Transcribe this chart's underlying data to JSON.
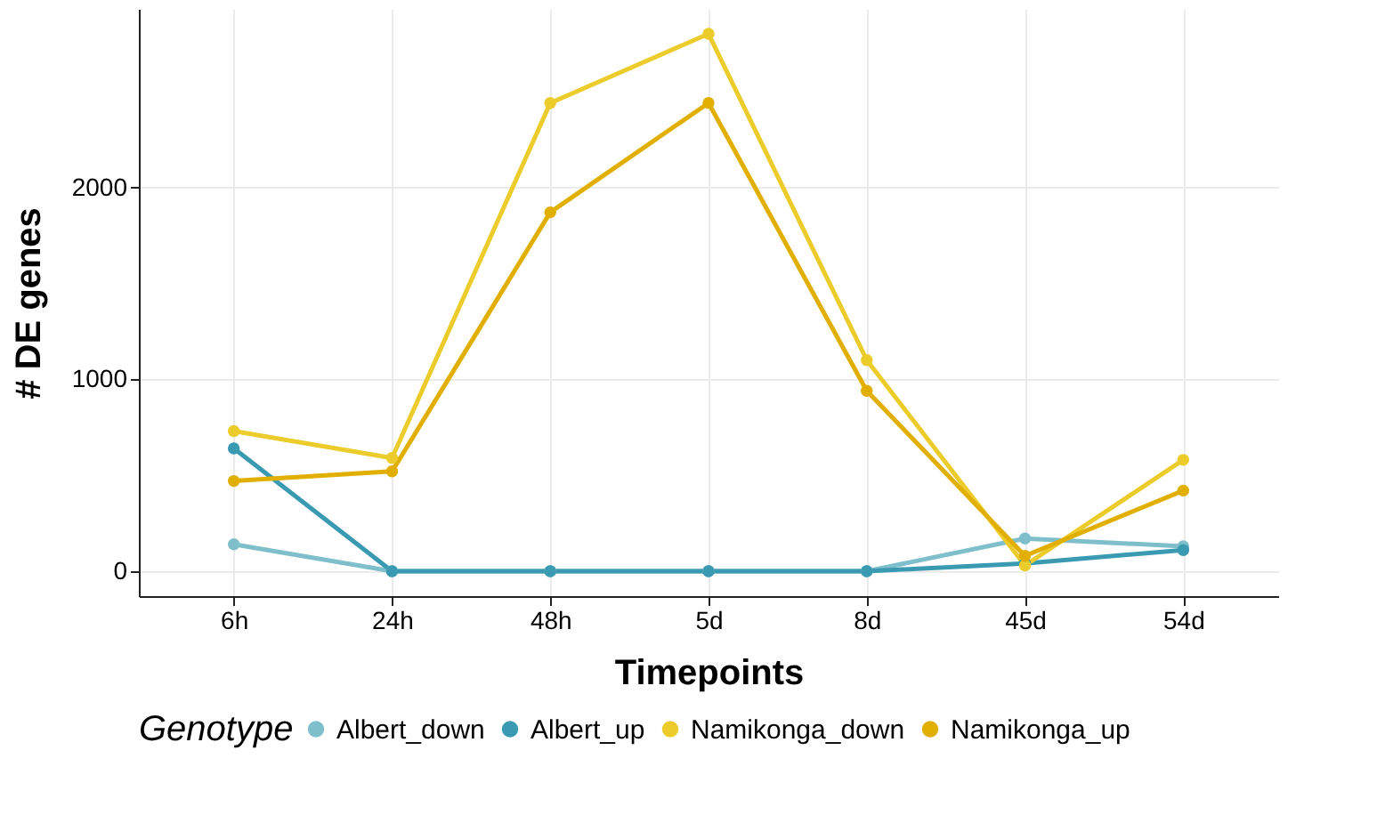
{
  "chart_data": {
    "type": "line",
    "xlabel": "Timepoints",
    "ylabel": "# DE genes",
    "legend_title": "Genotype",
    "categories": [
      "6h",
      "24h",
      "48h",
      "5d",
      "8d",
      "45d",
      "54d"
    ],
    "series": [
      {
        "name": "Albert_down",
        "color": "#7fbfcc",
        "values": [
          140,
          0,
          0,
          0,
          0,
          170,
          130
        ]
      },
      {
        "name": "Albert_up",
        "color": "#3a9ab2",
        "values": [
          640,
          0,
          0,
          0,
          0,
          40,
          110
        ]
      },
      {
        "name": "Namikonga_down",
        "color": "#ebcc2a",
        "values": [
          730,
          590,
          2440,
          2800,
          1100,
          30,
          580
        ]
      },
      {
        "name": "Namikonga_up",
        "color": "#e1af00",
        "values": [
          470,
          520,
          1870,
          2440,
          940,
          80,
          420
        ]
      }
    ],
    "ylim": [
      -130,
      2930
    ],
    "yticks": [
      0,
      1000,
      2000
    ],
    "grid": true,
    "legend": "bottom",
    "marker": "circle",
    "line_style": "solid"
  }
}
